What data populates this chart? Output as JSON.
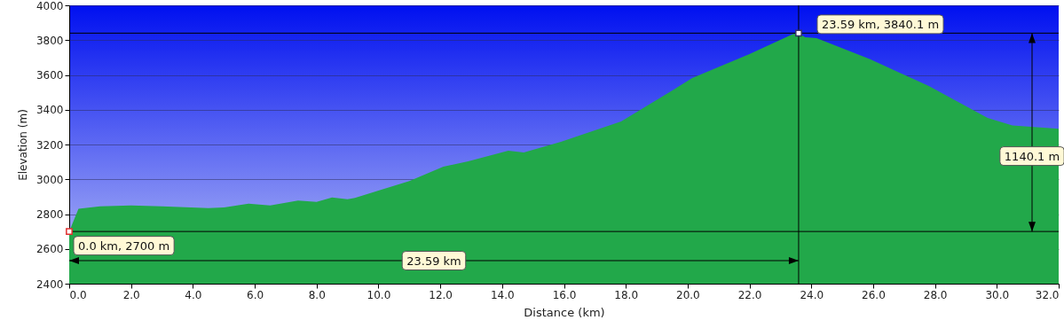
{
  "chart_data": {
    "type": "area",
    "xlabel": "Distance   (km)",
    "ylabel": "Elevation (m)",
    "x": [
      0,
      0.3,
      1.0,
      2.0,
      3.0,
      4.5,
      5.0,
      5.8,
      6.5,
      7.4,
      8.0,
      8.5,
      9.0,
      9.24,
      10.0,
      11.0,
      12.1,
      12.9,
      14.2,
      14.7,
      15.9,
      17.85,
      19.6,
      20.15,
      22.0,
      23.4,
      23.59,
      23.8,
      24.17,
      25.9,
      27.8,
      29.7,
      30.5,
      32.0
    ],
    "series": [
      {
        "color": "#22a84a",
        "values": [
          2700,
          2830,
          2845,
          2850,
          2845,
          2835,
          2838,
          2860,
          2850,
          2878,
          2870,
          2895,
          2885,
          2893,
          2935,
          2990,
          3073,
          3103,
          3164,
          3154,
          3215,
          3333,
          3521,
          3582,
          3720,
          3835,
          3840.1,
          3817,
          3811,
          3690,
          3536,
          3353,
          3310,
          3290
        ]
      }
    ],
    "xlim": [
      0,
      32
    ],
    "ylim": [
      2400,
      4000
    ],
    "xticks": [
      {
        "value": 0,
        "label": "0.0"
      },
      {
        "value": 2,
        "label": "2.0"
      },
      {
        "value": 4,
        "label": "4.0"
      },
      {
        "value": 6,
        "label": "6.0"
      },
      {
        "value": 8,
        "label": "8.0"
      },
      {
        "value": 10,
        "label": "10.0"
      },
      {
        "value": 12,
        "label": "12.0"
      },
      {
        "value": 14,
        "label": "14.0"
      },
      {
        "value": 16,
        "label": "16.0"
      },
      {
        "value": 18,
        "label": "18.0"
      },
      {
        "value": 20,
        "label": "20.0"
      },
      {
        "value": 22,
        "label": "22.0"
      },
      {
        "value": 24,
        "label": "24.0"
      },
      {
        "value": 26,
        "label": "26.0"
      },
      {
        "value": 28,
        "label": "28.0"
      },
      {
        "value": 30,
        "label": "30.0"
      },
      {
        "value": 32,
        "label": "32.0"
      }
    ],
    "yticks": [
      2400,
      2600,
      2800,
      3000,
      3200,
      3400,
      3600,
      3800,
      4000
    ],
    "grid": "y",
    "ref_lines": [
      {
        "axis": "y",
        "value": 2700,
        "label": null
      },
      {
        "axis": "y",
        "value": 3840.1,
        "label": null
      },
      {
        "axis": "x",
        "value": 23.59,
        "label": null
      }
    ],
    "annotations": [
      {
        "text": "0.0 km, 2700 m",
        "x": 0,
        "y": 2700
      },
      {
        "text": "23.59 km, 3840.1 m",
        "x": 23.59,
        "y": 3840.1
      },
      "23.59 km",
      "1140.1 m"
    ]
  }
}
